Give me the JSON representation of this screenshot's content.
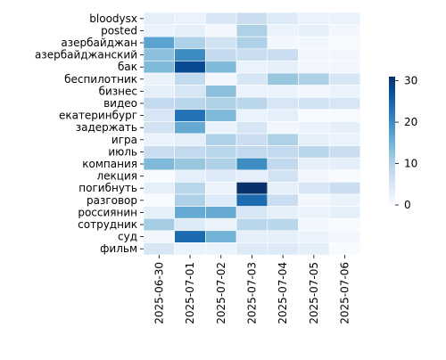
{
  "chart_data": {
    "type": "heatmap",
    "title": "",
    "xlabel": "",
    "ylabel": "",
    "x": [
      "2025-06-30",
      "2025-07-01",
      "2025-07-02",
      "2025-07-03",
      "2025-07-04",
      "2025-07-05",
      "2025-07-06"
    ],
    "y": [
      "bloodysx",
      "posted",
      "азербайджан",
      "азербайджанский",
      "бак",
      "беспилотник",
      "бизнес",
      "видео",
      "екатеринбург",
      "задержать",
      "игра",
      "июль",
      "компания",
      "лекция",
      "погибнуть",
      "разговор",
      "россиянин",
      "сотрудник",
      "суд",
      "фильм"
    ],
    "values": [
      [
        3,
        2,
        5,
        7,
        4,
        2,
        2
      ],
      [
        2,
        3,
        1,
        10,
        2,
        3,
        1
      ],
      [
        17,
        10,
        6,
        10,
        1,
        1,
        0
      ],
      [
        13,
        20,
        8,
        7,
        7,
        1,
        1
      ],
      [
        14,
        28,
        14,
        2,
        3,
        1,
        1
      ],
      [
        2,
        8,
        1,
        5,
        12,
        10,
        5
      ],
      [
        3,
        5,
        13,
        2,
        2,
        1,
        2
      ],
      [
        8,
        9,
        10,
        9,
        5,
        6,
        5
      ],
      [
        5,
        23,
        14,
        2,
        3,
        0,
        0
      ],
      [
        6,
        16,
        2,
        5,
        1,
        2,
        3
      ],
      [
        2,
        3,
        10,
        7,
        10,
        3,
        2
      ],
      [
        7,
        8,
        9,
        8,
        8,
        9,
        7
      ],
      [
        14,
        12,
        10,
        20,
        8,
        3,
        3
      ],
      [
        0,
        3,
        4,
        3,
        6,
        1,
        0
      ],
      [
        3,
        9,
        2,
        31,
        3,
        5,
        7
      ],
      [
        0,
        10,
        4,
        24,
        7,
        1,
        2
      ],
      [
        3,
        16,
        16,
        5,
        3,
        2,
        3
      ],
      [
        11,
        4,
        2,
        9,
        9,
        1,
        0
      ],
      [
        1,
        24,
        15,
        3,
        3,
        2,
        1
      ],
      [
        5,
        2,
        2,
        4,
        4,
        3,
        0
      ]
    ],
    "colorbar": {
      "min": 0,
      "max": 31,
      "ticks": [
        "0",
        "10",
        "20",
        "30"
      ]
    },
    "colormap_stops": [
      "#f7fbff",
      "#deebf7",
      "#c6dbef",
      "#9ecae1",
      "#6baed6",
      "#4292c6",
      "#2171b5",
      "#08519c",
      "#08306b"
    ],
    "grid": false,
    "legend": "none",
    "colorbar_placement": "right"
  }
}
